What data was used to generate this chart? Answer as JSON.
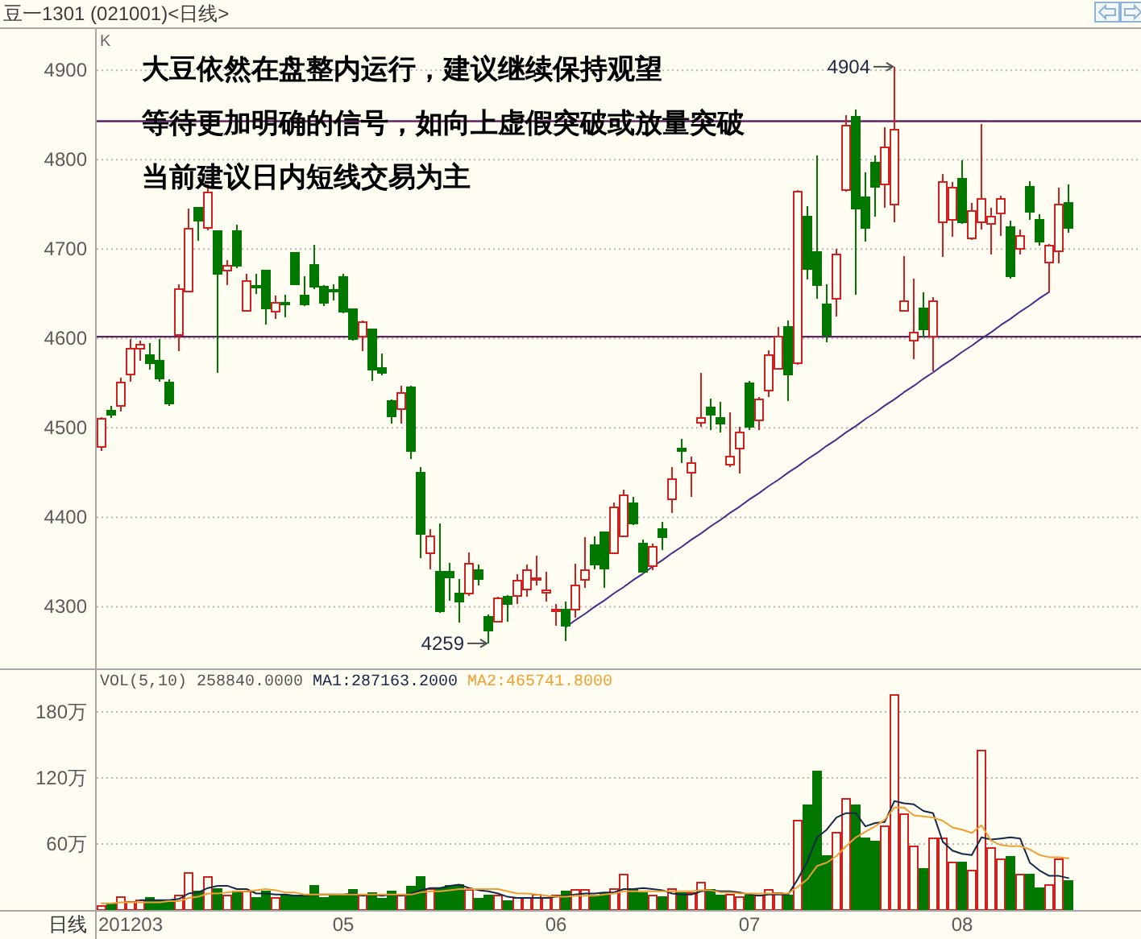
{
  "chart_data": [
    {
      "type": "candlestick",
      "title": "豆一1301 (021001)<日线>",
      "ylabel": "K",
      "categories": [
        null,
        null,
        null,
        null,
        null,
        null,
        null,
        null,
        null,
        null,
        null,
        null,
        null,
        null,
        null,
        null,
        null,
        null,
        null,
        null,
        null,
        null,
        null,
        null,
        null,
        null,
        null,
        null,
        null,
        null,
        null,
        null,
        null,
        null,
        null,
        null,
        null,
        null,
        null,
        null,
        null,
        null,
        null,
        null,
        null,
        null,
        null,
        null,
        null,
        null,
        null,
        null,
        null,
        null,
        null,
        null,
        null,
        null,
        null,
        null,
        null,
        null,
        null,
        null,
        null,
        null,
        null,
        null,
        null,
        null,
        null,
        null,
        null,
        null,
        null,
        null,
        null,
        null,
        null,
        null,
        null,
        null,
        null,
        null,
        null,
        null,
        null,
        null,
        null,
        null,
        null,
        null,
        null,
        null,
        null,
        null,
        null,
        null,
        null,
        null,
        null
      ],
      "ohlc": [
        [
          4479,
          4512,
          4474,
          4510
        ],
        [
          4519,
          4525,
          4511,
          4515
        ],
        [
          4525,
          4556,
          4518,
          4551
        ],
        [
          4560,
          4599,
          4552,
          4589
        ],
        [
          4589,
          4598,
          4575,
          4593
        ],
        [
          4581,
          4595,
          4565,
          4572
        ],
        [
          4575,
          4599,
          4552,
          4555
        ],
        [
          4551,
          4554,
          4525,
          4527
        ],
        [
          4604,
          4661,
          4586,
          4655
        ],
        [
          4653,
          4745,
          4652,
          4723
        ],
        [
          4746,
          4747,
          4709,
          4732
        ],
        [
          4724,
          4772,
          4721,
          4763
        ],
        [
          4720,
          4721,
          4562,
          4672
        ],
        [
          4676,
          4688,
          4660,
          4681
        ],
        [
          4720,
          4727,
          4679,
          4681
        ],
        [
          4631,
          4672,
          4630,
          4664
        ],
        [
          4659,
          4672,
          4650,
          4658
        ],
        [
          4676,
          4677,
          4616,
          4634
        ],
        [
          4630,
          4648,
          4622,
          4640
        ],
        [
          4640,
          4649,
          4624,
          4639
        ],
        [
          4696,
          4697,
          4660,
          4661
        ],
        [
          4648,
          4670,
          4636,
          4638
        ],
        [
          4682,
          4705,
          4655,
          4658
        ],
        [
          4658,
          4660,
          4636,
          4640
        ],
        [
          4654,
          4661,
          4643,
          4653
        ],
        [
          4669,
          4672,
          4628,
          4630
        ],
        [
          4633,
          4634,
          4598,
          4599
        ],
        [
          4602,
          4620,
          4586,
          4618
        ],
        [
          4610,
          4611,
          4553,
          4565
        ],
        [
          4567,
          4583,
          4559,
          4562
        ],
        [
          4530,
          4532,
          4505,
          4513
        ],
        [
          4521,
          4547,
          4505,
          4539
        ],
        [
          4545,
          4547,
          4465,
          4474
        ],
        [
          4450,
          4456,
          4354,
          4381
        ],
        [
          4360,
          4387,
          4342,
          4379
        ],
        [
          4339,
          4393,
          4293,
          4295
        ],
        [
          4339,
          4349,
          4307,
          4333
        ],
        [
          4315,
          4331,
          4282,
          4306
        ],
        [
          4315,
          4361,
          4312,
          4348
        ],
        [
          4341,
          4347,
          4324,
          4331
        ],
        [
          4289,
          4291,
          4259,
          4273
        ],
        [
          4283,
          4311,
          4282,
          4309
        ],
        [
          4311,
          4313,
          4283,
          4303
        ],
        [
          4312,
          4336,
          4303,
          4329
        ],
        [
          4319,
          4347,
          4311,
          4341
        ],
        [
          4331,
          4357,
          4324,
          4332
        ],
        [
          4316,
          4339,
          4306,
          4318
        ],
        [
          4295,
          4303,
          4279,
          4297
        ],
        [
          4297,
          4306,
          4262,
          4279
        ],
        [
          4297,
          4348,
          4288,
          4324
        ],
        [
          4330,
          4378,
          4321,
          4341
        ],
        [
          4369,
          4379,
          4342,
          4347
        ],
        [
          4383,
          4384,
          4321,
          4343
        ],
        [
          4360,
          4417,
          4359,
          4411
        ],
        [
          4379,
          4431,
          4378,
          4425
        ],
        [
          4416,
          4423,
          4391,
          4393
        ],
        [
          4371,
          4375,
          4338,
          4339
        ],
        [
          4345,
          4371,
          4341,
          4367
        ],
        [
          4387,
          4395,
          4363,
          4378
        ],
        [
          4420,
          4456,
          4405,
          4443
        ],
        [
          4477,
          4488,
          4461,
          4474
        ],
        [
          4450,
          4468,
          4423,
          4461
        ],
        [
          4506,
          4562,
          4501,
          4511
        ],
        [
          4523,
          4533,
          4498,
          4515
        ],
        [
          4511,
          4529,
          4495,
          4505
        ],
        [
          4459,
          4517,
          4456,
          4468
        ],
        [
          4477,
          4501,
          4449,
          4495
        ],
        [
          4550,
          4553,
          4498,
          4501
        ],
        [
          4508,
          4535,
          4498,
          4532
        ],
        [
          4542,
          4587,
          4535,
          4581
        ],
        [
          4566,
          4613,
          4565,
          4602
        ],
        [
          4613,
          4620,
          4530,
          4560
        ],
        [
          4572,
          4766,
          4571,
          4764
        ],
        [
          4736,
          4748,
          4666,
          4678
        ],
        [
          4697,
          4805,
          4644,
          4660
        ],
        [
          4638,
          4661,
          4596,
          4604
        ],
        [
          4644,
          4700,
          4625,
          4694
        ],
        [
          4766,
          4850,
          4764,
          4838
        ],
        [
          4848,
          4856,
          4649,
          4745
        ],
        [
          4758,
          4786,
          4708,
          4724
        ],
        [
          4797,
          4805,
          4736,
          4770
        ],
        [
          4772,
          4836,
          4746,
          4814
        ],
        [
          4750,
          4904,
          4730,
          4834
        ],
        [
          4631,
          4692,
          4630,
          4642
        ],
        [
          4598,
          4667,
          4577,
          4607
        ],
        [
          4634,
          4652,
          4601,
          4610
        ],
        [
          4602,
          4646,
          4563,
          4642
        ],
        [
          4730,
          4784,
          4691,
          4775
        ],
        [
          4733,
          4775,
          4714,
          4769
        ],
        [
          4779,
          4799,
          4728,
          4730
        ],
        [
          4712,
          4752,
          4710,
          4743
        ],
        [
          4730,
          4840,
          4722,
          4756
        ],
        [
          4728,
          4746,
          4694,
          4736
        ],
        [
          4740,
          4760,
          4715,
          4756
        ],
        [
          4725,
          4732,
          4667,
          4670
        ],
        [
          4700,
          4722,
          4694,
          4715
        ],
        [
          4770,
          4776,
          4733,
          4742
        ],
        [
          4733,
          4739,
          4704,
          4708
        ],
        [
          4685,
          4706,
          4652,
          4704
        ],
        [
          4698,
          4769,
          4684,
          4750
        ],
        [
          4752,
          4772,
          4718,
          4724
        ]
      ],
      "colors": [
        "#d02020",
        "#007800",
        "#d02020",
        "#d02020",
        "#d02020",
        "#007800",
        "#007800",
        "#007800",
        "#d02020",
        "#d02020",
        "#007800",
        "#d02020",
        "#007800",
        "#d02020",
        "#007800",
        "#d02020",
        "#007800",
        "#007800",
        "#d02020",
        "#007800",
        "#007800",
        "#007800",
        "#007800",
        "#007800",
        "#007800",
        "#007800",
        "#007800",
        "#d02020",
        "#007800",
        "#007800",
        "#007800",
        "#d02020",
        "#007800",
        "#007800",
        "#d02020",
        "#007800",
        "#007800",
        "#007800",
        "#d02020",
        "#007800",
        "#007800",
        "#d02020",
        "#007800",
        "#d02020",
        "#d02020",
        "#d02020",
        "#d02020",
        "#d02020",
        "#007800",
        "#d02020",
        "#d02020",
        "#007800",
        "#007800",
        "#d02020",
        "#d02020",
        "#007800",
        "#007800",
        "#d02020",
        "#007800",
        "#d02020",
        "#007800",
        "#d02020",
        "#d02020",
        "#007800",
        "#007800",
        "#d02020",
        "#d02020",
        "#007800",
        "#d02020",
        "#d02020",
        "#d02020",
        "#007800",
        "#d02020",
        "#007800",
        "#007800",
        "#007800",
        "#d02020",
        "#d02020",
        "#007800",
        "#007800",
        "#007800",
        "#d02020",
        "#d02020",
        "#d02020",
        "#d02020",
        "#007800",
        "#d02020",
        "#d02020",
        "#d02020",
        "#007800",
        "#d02020",
        "#d02020",
        "#d02020",
        "#d02020",
        "#007800",
        "#d02020",
        "#007800",
        "#007800",
        "#d02020",
        "#d02020",
        "#007800"
      ],
      "series": [
        {
          "type": "line",
          "color": "#47308a",
          "values": [
            null,
            null,
            null,
            null,
            null,
            null,
            null,
            null,
            null,
            null,
            null,
            null,
            null,
            null,
            null,
            null,
            null,
            null,
            null,
            null,
            null,
            null,
            null,
            null,
            null,
            null,
            null,
            null,
            null,
            null,
            null,
            null,
            null,
            null,
            null,
            null,
            null,
            null,
            null,
            null,
            null,
            null,
            null,
            null,
            null,
            null,
            null,
            null,
            4277,
            4285,
            4292,
            4300,
            4307,
            4315,
            4322,
            4330,
            4337,
            4345,
            4352,
            4360,
            4367,
            4375,
            4382,
            4390,
            4397,
            4405,
            4412,
            4420,
            4427,
            4435,
            4442,
            4450,
            4457,
            4465,
            4472,
            4480,
            4487,
            4495,
            4502,
            4510,
            4517,
            4525,
            4532,
            4540,
            4547,
            4555,
            4562,
            4570,
            4577,
            4585,
            4592,
            4600,
            4607,
            4615,
            4622,
            4630,
            4637,
            4645,
            4652,
            null,
            null
          ]
        }
      ],
      "ylim": [
        4231,
        4948
      ],
      "yticks": [
        4300,
        4400,
        4500,
        4600,
        4700,
        4800,
        4900
      ],
      "grid": "y",
      "tick_labels": "y",
      "ref_lines": [
        {
          "axis": "y",
          "value": 4843,
          "color": "#5e2360"
        },
        {
          "axis": "y",
          "value": 4602,
          "color": "#5e2360"
        }
      ],
      "annotations": [
        "大豆依然在盘整内运行，建议继续保持观望",
        "等待更加明确的信号，如向上虚假突破或放量突破",
        "当前建议日内短线交易为主",
        "4904",
        "4259"
      ]
    },
    {
      "type": "bar",
      "title": "VOL(5,10) 258840.0000",
      "xlabel": "日线",
      "categories": [
        null,
        null,
        null,
        "201203",
        null,
        null,
        null,
        null,
        null,
        null,
        null,
        null,
        null,
        null,
        null,
        null,
        null,
        null,
        null,
        null,
        null,
        null,
        null,
        null,
        null,
        "05",
        null,
        null,
        null,
        null,
        null,
        null,
        null,
        null,
        null,
        null,
        null,
        null,
        null,
        null,
        null,
        null,
        null,
        null,
        null,
        null,
        null,
        "06",
        null,
        null,
        null,
        null,
        null,
        null,
        null,
        null,
        null,
        null,
        null,
        null,
        null,
        null,
        null,
        null,
        null,
        null,
        null,
        "07",
        null,
        null,
        null,
        null,
        null,
        null,
        null,
        null,
        null,
        null,
        null,
        null,
        null,
        null,
        null,
        null,
        null,
        null,
        null,
        null,
        null,
        "08",
        null,
        null,
        null,
        null,
        null,
        null,
        null,
        null,
        null,
        null,
        null
      ],
      "ylim": [
        0,
        218
      ],
      "yticks": [
        {
          "value": 60,
          "label": "60万"
        },
        {
          "value": 120,
          "label": "120万"
        },
        {
          "value": 180,
          "label": "180万"
        }
      ],
      "grid": "y",
      "legend": "top left",
      "series": [
        {
          "type": "bar",
          "values": [
            4,
            5,
            12,
            7,
            9,
            11,
            9,
            7,
            13,
            34,
            17,
            30,
            19,
            13,
            17,
            17,
            11,
            17,
            11,
            13,
            13,
            13,
            22,
            11,
            13,
            13,
            18,
            13,
            15,
            10,
            17,
            13,
            21,
            30,
            19,
            20,
            22,
            23,
            18,
            10,
            13,
            13,
            8,
            11,
            11,
            14,
            11,
            13,
            17,
            18,
            18,
            13,
            15,
            19,
            32,
            18,
            15,
            13,
            12,
            19,
            15,
            15,
            25,
            18,
            13,
            14,
            12,
            13,
            13,
            18,
            15,
            13,
            81,
            95,
            126,
            49,
            70,
            101,
            95,
            65,
            62,
            76,
            195,
            87,
            58,
            37,
            65,
            65,
            43,
            43,
            36,
            145,
            56,
            46,
            48,
            32,
            32,
            20,
            23,
            46,
            26
          ],
          "colors": [
            "#d02020",
            "#007800",
            "#d02020",
            "#d02020",
            "#d02020",
            "#007800",
            "#007800",
            "#007800",
            "#d02020",
            "#d02020",
            "#007800",
            "#d02020",
            "#007800",
            "#d02020",
            "#007800",
            "#d02020",
            "#007800",
            "#007800",
            "#d02020",
            "#007800",
            "#007800",
            "#007800",
            "#007800",
            "#007800",
            "#007800",
            "#007800",
            "#007800",
            "#d02020",
            "#007800",
            "#007800",
            "#007800",
            "#d02020",
            "#007800",
            "#007800",
            "#d02020",
            "#007800",
            "#007800",
            "#007800",
            "#d02020",
            "#007800",
            "#007800",
            "#d02020",
            "#007800",
            "#d02020",
            "#d02020",
            "#d02020",
            "#d02020",
            "#d02020",
            "#007800",
            "#d02020",
            "#d02020",
            "#007800",
            "#007800",
            "#d02020",
            "#d02020",
            "#007800",
            "#007800",
            "#d02020",
            "#007800",
            "#d02020",
            "#007800",
            "#d02020",
            "#d02020",
            "#007800",
            "#007800",
            "#d02020",
            "#d02020",
            "#007800",
            "#d02020",
            "#d02020",
            "#d02020",
            "#007800",
            "#d02020",
            "#007800",
            "#007800",
            "#007800",
            "#d02020",
            "#d02020",
            "#007800",
            "#007800",
            "#007800",
            "#d02020",
            "#d02020",
            "#d02020",
            "#d02020",
            "#007800",
            "#d02020",
            "#d02020",
            "#d02020",
            "#007800",
            "#d02020",
            "#d02020",
            "#d02020",
            "#d02020",
            "#007800",
            "#d02020",
            "#007800",
            "#007800",
            "#d02020",
            "#d02020",
            "#007800"
          ]
        },
        {
          "type": "line",
          "name": "MA1:287163.2000",
          "color": "#14284a",
          "values": [
            null,
            null,
            null,
            null,
            9,
            9,
            9,
            9,
            10,
            15,
            16,
            20,
            22,
            22,
            19,
            19,
            15,
            15,
            14,
            14,
            13,
            13,
            14,
            14,
            14,
            14,
            15,
            13,
            14,
            13,
            14,
            13,
            15,
            18,
            20,
            20,
            22,
            23,
            20,
            18,
            17,
            15,
            12,
            11,
            11,
            11,
            11,
            12,
            13,
            14,
            15,
            15,
            16,
            16,
            19,
            19,
            20,
            19,
            18,
            15,
            14,
            14,
            17,
            18,
            17,
            17,
            16,
            14,
            13,
            14,
            14,
            14,
            28,
            44,
            66,
            73,
            84,
            88,
            88,
            76,
            79,
            80,
            99,
            97,
            96,
            90,
            88,
            62,
            54,
            51,
            50,
            66,
            64,
            65,
            66,
            65,
            43,
            36,
            31,
            31,
            29
          ]
        },
        {
          "type": "line",
          "name": "MA2:465741.8000",
          "color": "#eda032",
          "values": [
            6,
            6,
            7,
            7,
            7,
            7,
            7,
            8,
            8,
            11,
            12,
            15,
            15,
            16,
            17,
            17,
            18,
            19,
            18,
            16,
            16,
            14,
            14,
            14,
            14,
            14,
            14,
            14,
            14,
            14,
            14,
            14,
            14,
            16,
            17,
            17,
            18,
            19,
            19,
            19,
            19,
            19,
            17,
            15,
            15,
            14,
            13,
            12,
            12,
            13,
            13,
            13,
            14,
            15,
            17,
            17,
            17,
            17,
            17,
            17,
            17,
            17,
            18,
            18,
            16,
            16,
            15,
            15,
            15,
            15,
            15,
            15,
            21,
            28,
            40,
            43,
            49,
            58,
            66,
            71,
            76,
            82,
            93,
            93,
            86,
            85,
            84,
            81,
            75,
            73,
            70,
            77,
            63,
            59,
            58,
            58,
            55,
            50,
            48,
            48,
            47
          ]
        }
      ]
    }
  ]
}
